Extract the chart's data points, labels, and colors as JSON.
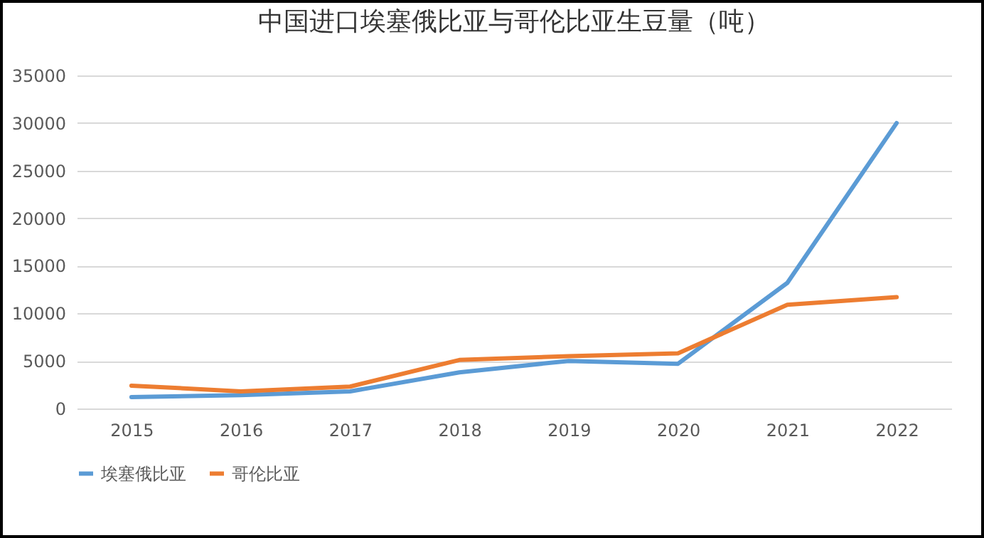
{
  "chart_data": {
    "type": "line",
    "title": "中国进口埃塞俄比亚与哥伦比亚生豆量（吨）",
    "categories": [
      "2015",
      "2016",
      "2017",
      "2018",
      "2019",
      "2020",
      "2021",
      "2022"
    ],
    "series": [
      {
        "name": "埃塞俄比亚",
        "color": "#5b9bd5",
        "values": [
          1200,
          1400,
          1800,
          3800,
          5000,
          4700,
          13200,
          30000
        ]
      },
      {
        "name": "哥伦比亚",
        "color": "#ed7d31",
        "values": [
          2400,
          1800,
          2300,
          5100,
          5500,
          5800,
          10900,
          11700
        ]
      }
    ],
    "ylim": [
      0,
      35000
    ],
    "yticks": [
      0,
      5000,
      10000,
      15000,
      20000,
      25000,
      30000,
      35000
    ],
    "grid": "y",
    "legend": "bottom",
    "marker": "none",
    "line_style": "solid"
  }
}
